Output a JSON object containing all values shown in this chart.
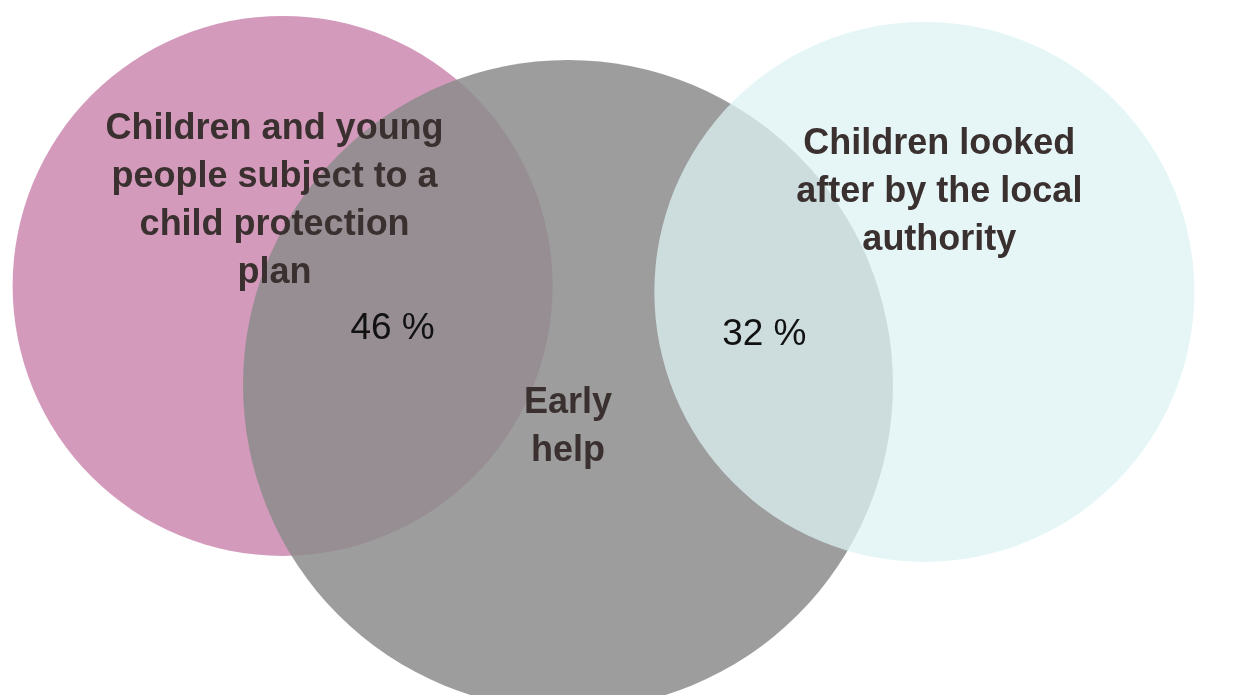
{
  "chart_data": {
    "type": "other",
    "categories": [
      "Children and young people subject to a child protection plan",
      "Early help",
      "Children looked after by the local authority"
    ],
    "values": [
      46,
      null,
      32
    ],
    "value_labels": [
      "46 %",
      null,
      "32 %"
    ],
    "colors": [
      "#cc88b0",
      "#8c8c8c",
      "#def3f3"
    ]
  }
}
